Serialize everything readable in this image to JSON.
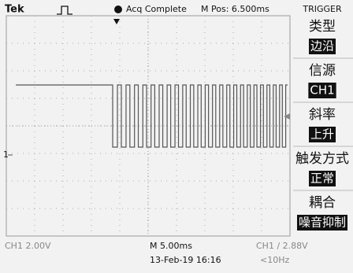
{
  "header": {
    "brand": "Tek",
    "status": "Acq Complete",
    "position": "M Pos: 6.500ms",
    "menu_title": "TRIGGER"
  },
  "menu": [
    {
      "label": "类型",
      "value": "边沿"
    },
    {
      "label": "信源",
      "value": "CH1"
    },
    {
      "label": "斜率",
      "value": "上升"
    },
    {
      "label": "触发方式",
      "value": "正常"
    },
    {
      "label": "耦合",
      "value": "噪音抑制"
    }
  ],
  "channel_marker": "1",
  "footer": {
    "channel_scale": "CH1 2.00V",
    "timebase": "M 5.00ms",
    "trigger": "CH1 / 2.88V",
    "date": "13-Feb-19 16:16",
    "frequency": "<10Hz"
  }
}
